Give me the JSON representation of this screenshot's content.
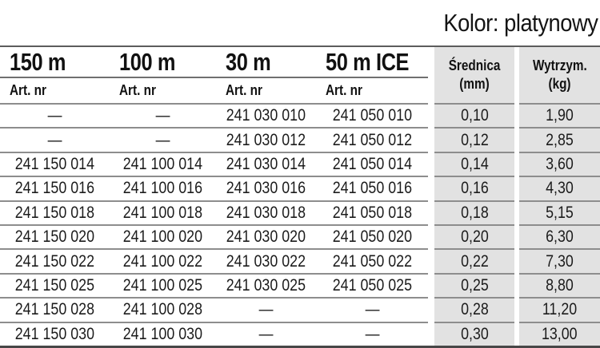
{
  "page": {
    "title": "Kolor: platynowy"
  },
  "table": {
    "length_columns": [
      {
        "label": "150 m",
        "sublabel": "Art. nr"
      },
      {
        "label": "100 m",
        "sublabel": "Art. nr"
      },
      {
        "label": "30 m",
        "sublabel": "Art. nr"
      },
      {
        "label": "50 m ICE",
        "sublabel": "Art. nr"
      }
    ],
    "spec_columns": [
      {
        "label": "Średnica",
        "unit": "(mm)"
      },
      {
        "label": "Wytrzym.",
        "unit": "(kg)"
      }
    ],
    "rows": [
      {
        "m150": "—",
        "m100": "—",
        "m30": "241 030 010",
        "m50ice": "241 050 010",
        "diameter": "0,10",
        "strength": "1,90"
      },
      {
        "m150": "—",
        "m100": "—",
        "m30": "241 030 012",
        "m50ice": "241 050 012",
        "diameter": "0,12",
        "strength": "2,85"
      },
      {
        "m150": "241 150 014",
        "m100": "241 100 014",
        "m30": "241 030 014",
        "m50ice": "241 050 014",
        "diameter": "0,14",
        "strength": "3,60"
      },
      {
        "m150": "241 150 016",
        "m100": "241 100 016",
        "m30": "241 030 016",
        "m50ice": "241 050 016",
        "diameter": "0,16",
        "strength": "4,30"
      },
      {
        "m150": "241 150 018",
        "m100": "241 100 018",
        "m30": "241 030 018",
        "m50ice": "241 050 018",
        "diameter": "0,18",
        "strength": "5,15"
      },
      {
        "m150": "241 150 020",
        "m100": "241 100 020",
        "m30": "241 030 020",
        "m50ice": "241 050 020",
        "diameter": "0,20",
        "strength": "6,30"
      },
      {
        "m150": "241 150 022",
        "m100": "241 100 022",
        "m30": "241 030 022",
        "m50ice": "241 050 022",
        "diameter": "0,22",
        "strength": "7,30"
      },
      {
        "m150": "241 150 025",
        "m100": "241 100 025",
        "m30": "241 030 025",
        "m50ice": "241 050 025",
        "diameter": "0,25",
        "strength": "8,80"
      },
      {
        "m150": "241 150 028",
        "m100": "241 100 028",
        "m30": "—",
        "m50ice": "—",
        "diameter": "0,28",
        "strength": "11,20"
      },
      {
        "m150": "241 150 030",
        "m100": "241 100 030",
        "m30": "—",
        "m50ice": "—",
        "diameter": "0,30",
        "strength": "13,00"
      }
    ]
  },
  "colors": {
    "spec_column_background": "#e2e2e2",
    "row_rule": "#8d8d8d",
    "table_border": "#474747",
    "text": "#1c1c1c"
  }
}
